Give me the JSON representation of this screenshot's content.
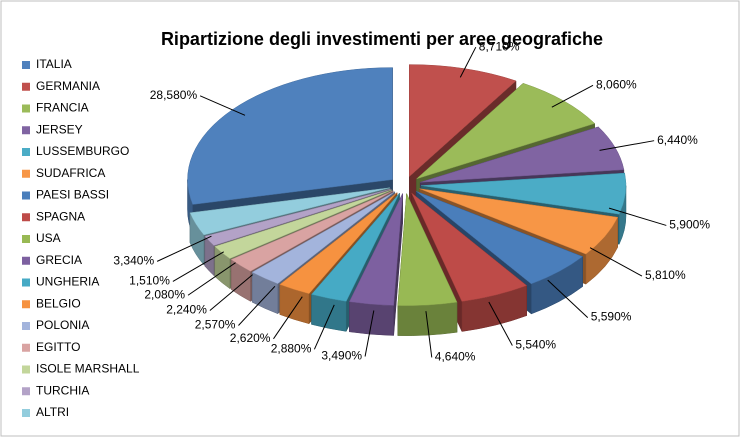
{
  "chart_data": {
    "type": "pie3d",
    "title": "Ripartizione degli investimenti per aree geografiche",
    "categories": [
      "ITALIA",
      "GERMANIA",
      "FRANCIA",
      "JERSEY",
      "LUSSEMBURGO",
      "SUDAFRICA",
      "PAESI BASSI",
      "SPAGNA",
      "USA",
      "GRECIA",
      "UNGHERIA",
      "BELGIO",
      "POLONIA",
      "EGITTO",
      "ISOLE MARSHALL",
      "TURCHIA",
      "ALTRI"
    ],
    "values": [
      28.58,
      8.71,
      8.06,
      6.44,
      5.9,
      5.81,
      5.59,
      5.54,
      4.64,
      3.49,
      2.88,
      2.62,
      2.57,
      2.24,
      2.08,
      1.51,
      3.34
    ],
    "value_labels": [
      "28,580%",
      "8,710%",
      "8,060%",
      "6,440%",
      "5,900%",
      "5,810%",
      "5,590%",
      "5,540%",
      "4,640%",
      "3,490%",
      "2,880%",
      "2,620%",
      "2,570%",
      "2,240%",
      "2,080%",
      "1,510%",
      "3,340%"
    ],
    "colors": [
      "#4f81bd",
      "#c0504d",
      "#9bbb59",
      "#8064a2",
      "#4bacc6",
      "#f79646",
      "#4a7ebb",
      "#be4b48",
      "#98b954",
      "#7d60a0",
      "#46aac5",
      "#f69240",
      "#a3b4dc",
      "#d9a3a2",
      "#c3d69b",
      "#b3a2c7",
      "#93cddd"
    ],
    "legend": "left"
  }
}
